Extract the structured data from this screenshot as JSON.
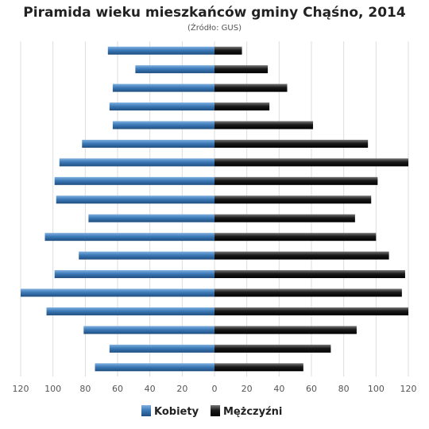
{
  "chart_data": {
    "type": "bar",
    "orientation": "horizontal",
    "title": "Piramida wieku mieszkańców gminy Chąśno, 2014",
    "subtitle": "(Źródło: GUS)",
    "xlim": [
      -120,
      120
    ],
    "x_ticks": [
      "120",
      "100",
      "80",
      "60",
      "40",
      "20",
      "0",
      "20",
      "40",
      "60",
      "80",
      "100",
      "120"
    ],
    "grid": true,
    "legend_position": "bottom",
    "series": [
      {
        "name": "Kobiety",
        "color": "#3d7ab8",
        "values": [
          66,
          49,
          63,
          65,
          63,
          82,
          96,
          99,
          98,
          78,
          105,
          84,
          99,
          120,
          104,
          81,
          65,
          74
        ]
      },
      {
        "name": "Mężczyźni",
        "color": "#1a1a1a",
        "values": [
          17,
          33,
          45,
          34,
          61,
          95,
          120,
          101,
          97,
          87,
          100,
          108,
          118,
          116,
          120,
          88,
          72,
          55
        ]
      }
    ]
  }
}
